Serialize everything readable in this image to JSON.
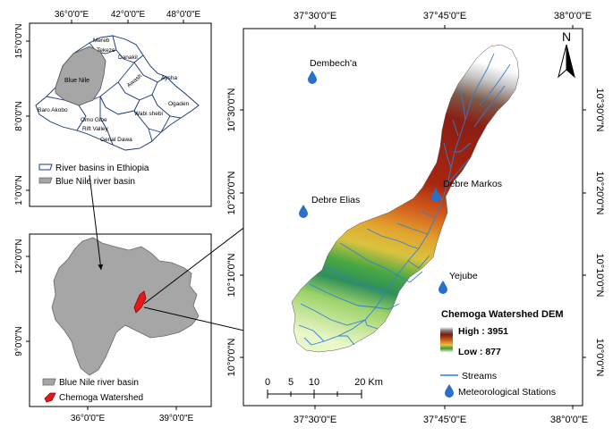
{
  "inset_top": {
    "top_lon_labels": [
      "36°0'0\"E",
      "42°0'0\"E",
      "48°0'0\"E"
    ],
    "left_lat_labels": [
      "15°0'0\"N",
      "8°0'0\"N",
      "1°0'0\"N"
    ],
    "basin_labels": [
      "Mereb",
      "Tekeze",
      "Danakil",
      "Blue Nile",
      "Aysha",
      "Awash",
      "Baro Akobo",
      "Omo Gibe",
      "Rift Valley",
      "Wabi shebi",
      "Ogaden",
      "Genal Dawa"
    ],
    "legend": {
      "basins_label": "River basins in Ethiopia",
      "blue_nile_label": "Blue Nile river basin"
    }
  },
  "inset_bottom": {
    "bottom_lon_labels": [
      "36°0'0\"E",
      "39°0'0\"E"
    ],
    "left_lat_labels": [
      "12°0'0\"N",
      "9°0'0\"N"
    ],
    "legend": {
      "blue_nile_label": "Blue Nile river basin",
      "watershed_label": "Chemoga Watershed"
    }
  },
  "main_map": {
    "top_lon_labels": [
      "37°30'0\"E",
      "37°45'0\"E",
      "38°0'0\"E"
    ],
    "bottom_lon_labels": [
      "37°30'0\"E",
      "37°45'0\"E",
      "38°0'0\"E"
    ],
    "left_lat_labels": [
      "10°30'0\"N",
      "10°20'0\"N",
      "10°10'0\"N",
      "10°0'0\"N"
    ],
    "right_lat_labels": [
      "10°30'0\"N",
      "10°20'0\"N",
      "10°10'0\"N",
      "10°0'0\"N"
    ],
    "north_label": "N",
    "stations": [
      {
        "name": "Dembech'a"
      },
      {
        "name": "Debre Elias"
      },
      {
        "name": "Debre Markos"
      },
      {
        "name": "Yejube"
      }
    ],
    "scale_bar": {
      "ticks": [
        "0",
        "5",
        "10",
        "20 Km"
      ]
    },
    "legend": {
      "title": "Chemoga Watershed DEM",
      "high_label": "High : 3951",
      "low_label": "Low : 877",
      "streams_label": "Streams",
      "stations_label": "Meteorological Stations"
    }
  },
  "colors": {
    "blue_nile_gray": "#a6a6a6",
    "watershed_red": "#e31a1c",
    "stream_blue": "#2f7fd6",
    "station_blue": "#2a6fc9",
    "dem_high": "#7a1a12",
    "dem_mid": "#d9b43a",
    "dem_green": "#3a9a3a",
    "dem_low": "#e8f5c0"
  }
}
